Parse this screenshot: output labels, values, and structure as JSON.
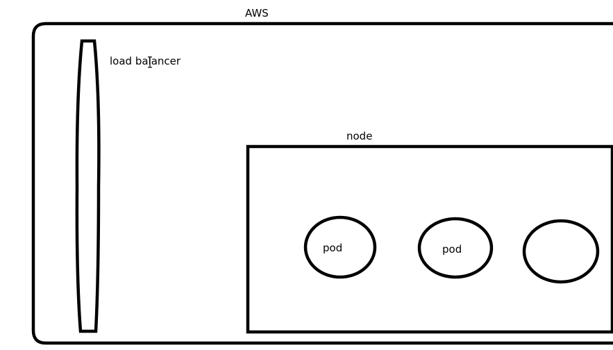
{
  "diagram": {
    "cloud": {
      "label": "AWS"
    },
    "load_balancer": {
      "label": "load balancer"
    },
    "node": {
      "label": "node"
    },
    "pods": [
      {
        "label": "pod"
      },
      {
        "label": "pod"
      },
      {
        "label": ""
      }
    ],
    "colors": {
      "stroke": "#000000",
      "background": "#ffffff"
    }
  }
}
